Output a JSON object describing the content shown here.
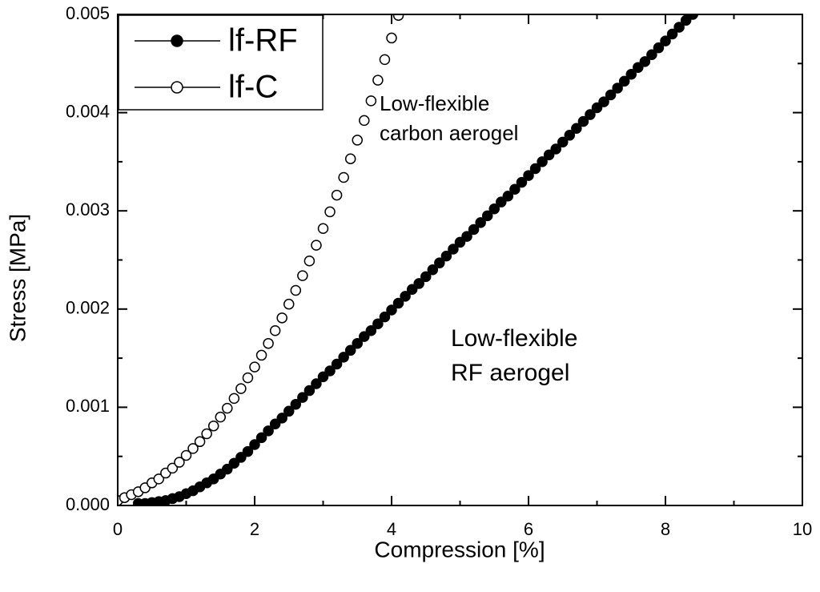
{
  "chart_data": {
    "type": "scatter",
    "xlabel": "Compression [%]",
    "ylabel": "Stress [MPa]",
    "xlim": [
      0,
      10
    ],
    "xticks": [
      0,
      2,
      4,
      6,
      8,
      10
    ],
    "xminorticks": [
      1,
      3,
      5,
      7,
      9
    ],
    "ylim": [
      0,
      0.005
    ],
    "yticks": [
      {
        "value": 0,
        "label": "0.000"
      },
      {
        "value": 0.001,
        "label": "0.001"
      },
      {
        "value": 0.002,
        "label": "0.002"
      },
      {
        "value": 0.003,
        "label": "0.003"
      },
      {
        "value": 0.004,
        "label": "0.004"
      },
      {
        "value": 0.005,
        "label": "0.005"
      }
    ],
    "yminorticks": [
      0.0005,
      0.0015,
      0.0025,
      0.0035,
      0.0045
    ],
    "legend": "upper left",
    "annotations": [
      {
        "lines": [
          "Low-flexible",
          "carbon aerogel"
        ]
      },
      {
        "lines": [
          "Low-flexible",
          "RF aerogel"
        ]
      }
    ],
    "series": [
      {
        "name": "lf-RF",
        "color": "#000000",
        "marker_fill": "#000000",
        "x": [
          0.3,
          0.4,
          0.5,
          0.6,
          0.7,
          0.8,
          0.9,
          1.0,
          1.1,
          1.2,
          1.3,
          1.4,
          1.5,
          1.6,
          1.7,
          1.8,
          1.9,
          2.0,
          2.1,
          2.2,
          2.3,
          2.4,
          2.5,
          2.6,
          2.7,
          2.8,
          2.9,
          3.0,
          3.1,
          3.2,
          3.3,
          3.4,
          3.5,
          3.6,
          3.7,
          3.8,
          3.9,
          4.0,
          4.1,
          4.2,
          4.3,
          4.4,
          4.5,
          4.6,
          4.7,
          4.8,
          4.9,
          5.0,
          5.1,
          5.2,
          5.3,
          5.4,
          5.5,
          5.6,
          5.7,
          5.8,
          5.9,
          6.0,
          6.1,
          6.2,
          6.3,
          6.4,
          6.5,
          6.6,
          6.7,
          6.8,
          6.9,
          7.0,
          7.1,
          7.2,
          7.3,
          7.4,
          7.5,
          7.6,
          7.7,
          7.8,
          7.9,
          8.0,
          8.1,
          8.2,
          8.3,
          8.4
        ],
        "values": [
          2e-05,
          2e-05,
          3e-05,
          4e-05,
          5e-05,
          7e-05,
          9e-05,
          0.00012,
          0.00015,
          0.00019,
          0.00023,
          0.00027,
          0.00032,
          0.00037,
          0.00043,
          0.00049,
          0.00055,
          0.00062,
          0.00069,
          0.00076,
          0.00083,
          0.00089,
          0.00096,
          0.00103,
          0.0011,
          0.00117,
          0.00124,
          0.00131,
          0.00137,
          0.00144,
          0.00151,
          0.00158,
          0.00165,
          0.00172,
          0.00178,
          0.00185,
          0.00192,
          0.00199,
          0.00206,
          0.00213,
          0.0022,
          0.00226,
          0.00233,
          0.0024,
          0.00247,
          0.00254,
          0.00261,
          0.00268,
          0.00274,
          0.00281,
          0.00288,
          0.00295,
          0.00302,
          0.00309,
          0.00315,
          0.00322,
          0.00329,
          0.00336,
          0.00343,
          0.0035,
          0.00357,
          0.00363,
          0.0037,
          0.00377,
          0.00384,
          0.00391,
          0.00398,
          0.00405,
          0.00411,
          0.00418,
          0.00425,
          0.00432,
          0.00439,
          0.00446,
          0.00452,
          0.00459,
          0.00466,
          0.00473,
          0.0048,
          0.00487,
          0.00494,
          0.005
        ]
      },
      {
        "name": "lf-C",
        "color": "#000000",
        "marker_fill": "#ffffff",
        "x": [
          0,
          0.1,
          0.2,
          0.3,
          0.4,
          0.5,
          0.6,
          0.7,
          0.8,
          0.9,
          1.0,
          1.1,
          1.2,
          1.3,
          1.4,
          1.5,
          1.6,
          1.7,
          1.8,
          1.9,
          2.0,
          2.1,
          2.2,
          2.3,
          2.4,
          2.5,
          2.6,
          2.7,
          2.8,
          2.9,
          3.0,
          3.1,
          3.2,
          3.3,
          3.4,
          3.5,
          3.6,
          3.7,
          3.8,
          3.9,
          4.0,
          4.1
        ],
        "values": [
          5e-05,
          8e-05,
          0.00011,
          0.00014,
          0.00018,
          0.00023,
          0.00027,
          0.00033,
          0.00038,
          0.00044,
          0.00051,
          0.00058,
          0.00065,
          0.00073,
          0.00081,
          0.0009,
          0.00099,
          0.00109,
          0.00119,
          0.0013,
          0.00141,
          0.00153,
          0.00165,
          0.00178,
          0.00191,
          0.00205,
          0.00219,
          0.00234,
          0.00249,
          0.00265,
          0.00282,
          0.00299,
          0.00316,
          0.00334,
          0.00353,
          0.00372,
          0.00392,
          0.00412,
          0.00433,
          0.00454,
          0.00476,
          0.00499
        ]
      }
    ]
  }
}
